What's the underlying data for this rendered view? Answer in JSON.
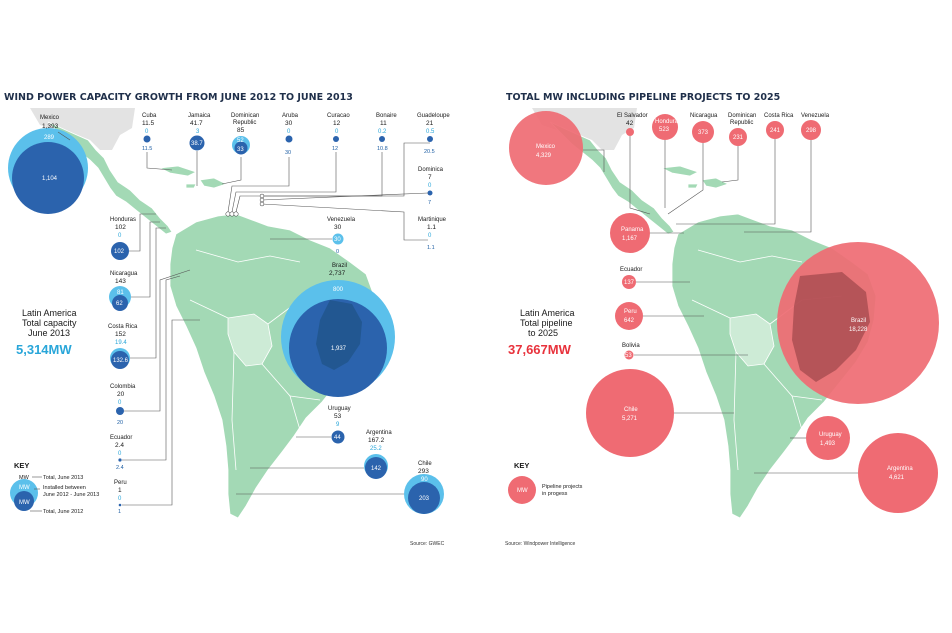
{
  "left": {
    "title": "WIND POWER CAPACITY GROWTH FROM JUNE 2012 TO JUNE 2013",
    "summary": {
      "line1": "Latin America",
      "line2": "Total capacity",
      "line3": "June 2013",
      "value": "5,314MW"
    },
    "source": "Source: GWEC",
    "key": {
      "heading": "KEY",
      "label_mw": "MW",
      "row1": "Total, June 2013",
      "row2a": "Installed between",
      "row2b": "June 2012 - June 2013",
      "row3": "Total, June 2012"
    },
    "countries": [
      {
        "id": "mexico",
        "name": "Mexico",
        "total": "1,393",
        "installed": "289",
        "prev": "1,104"
      },
      {
        "id": "cuba",
        "name": "Cuba",
        "total": "11.5",
        "installed": "0",
        "prev": "11.5"
      },
      {
        "id": "jamaica",
        "name": "Jamaica",
        "total": "41.7",
        "installed": "3",
        "prev": "38.7"
      },
      {
        "id": "dominican",
        "name_a": "Dominican",
        "name_b": "Republic",
        "total": "85",
        "installed": "52",
        "prev": "33"
      },
      {
        "id": "aruba",
        "name": "Aruba",
        "total": "30",
        "installed": "0",
        "prev": "30"
      },
      {
        "id": "curacao",
        "name": "Curacao",
        "total": "12",
        "installed": "0",
        "prev": "12"
      },
      {
        "id": "bonaire",
        "name": "Bonaire",
        "total": "11",
        "installed": "0.2",
        "prev": "10.8"
      },
      {
        "id": "guadeloupe",
        "name": "Guadeloupe",
        "total": "21",
        "installed": "0.5",
        "prev": "20.5"
      },
      {
        "id": "dominica",
        "name": "Dominica",
        "total": "7",
        "installed": "0",
        "prev": "7"
      },
      {
        "id": "martinique",
        "name": "Martinique",
        "total": "1.1",
        "installed": "0",
        "prev": "1.1"
      },
      {
        "id": "honduras",
        "name": "Honduras",
        "total": "102",
        "installed": "0",
        "prev": "102"
      },
      {
        "id": "nicaragua",
        "name": "Nicaragua",
        "total": "143",
        "installed": "81",
        "prev": "62"
      },
      {
        "id": "costarica",
        "name": "Costa Rica",
        "total": "152",
        "installed": "19.4",
        "prev": "132.6"
      },
      {
        "id": "colombia",
        "name": "Colombia",
        "total": "20",
        "installed": "0",
        "prev": "20"
      },
      {
        "id": "ecuador",
        "name": "Ecuador",
        "total": "2.4",
        "installed": "0",
        "prev": "2.4"
      },
      {
        "id": "peru",
        "name": "Peru",
        "total": "1",
        "installed": "0",
        "prev": "1"
      },
      {
        "id": "venezuela",
        "name": "Venezuela",
        "total": "30",
        "installed": "30",
        "prev": "0"
      },
      {
        "id": "brazil",
        "name": "Brazil",
        "total": "2,737",
        "installed": "800",
        "prev": "1,937"
      },
      {
        "id": "uruguay",
        "name": "Uruguay",
        "total": "53",
        "installed": "9",
        "prev": "44"
      },
      {
        "id": "argentina",
        "name": "Argentina",
        "total": "167.2",
        "installed": "25.2",
        "prev": "142"
      },
      {
        "id": "chile",
        "name": "Chile",
        "total": "293",
        "installed": "90",
        "prev": "203"
      }
    ]
  },
  "right": {
    "title": "TOTAL MW INCLUDING PIPELINE PROJECTS TO 2025",
    "summary": {
      "line1": "Latin America",
      "line2": "Total pipeline",
      "line3": "to 2025",
      "value": "37,667MW"
    },
    "source": "Source: Windpower Intelligence",
    "key": {
      "heading": "KEY",
      "label_mw": "MW",
      "row1a": "Pipeline projects",
      "row1b": "in progess"
    },
    "countries": [
      {
        "id": "mexico",
        "name": "Mexico",
        "value": "4,329"
      },
      {
        "id": "elsalvador",
        "name": "El Salvador",
        "value": "42"
      },
      {
        "id": "honduras",
        "name": "Honduras",
        "value": "523"
      },
      {
        "id": "nicaragua",
        "name": "Nicaragua",
        "value": "373"
      },
      {
        "id": "dominican",
        "name_a": "Dominican",
        "name_b": "Republic",
        "value": "231"
      },
      {
        "id": "costarica",
        "name": "Costa Rica",
        "value": "241"
      },
      {
        "id": "venezuela",
        "name": "Venezuela",
        "value": "298"
      },
      {
        "id": "panama",
        "name": "Panama",
        "value": "1,167"
      },
      {
        "id": "ecuador",
        "name": "Ecuador",
        "value": "137"
      },
      {
        "id": "peru",
        "name": "Peru",
        "value": "642"
      },
      {
        "id": "bolivia",
        "name": "Bolivia",
        "value": "53"
      },
      {
        "id": "brazil",
        "name": "Brazil",
        "value": "18,228"
      },
      {
        "id": "chile",
        "name": "Chile",
        "value": "5,271"
      },
      {
        "id": "uruguay",
        "name": "Uruguay",
        "value": "1,493"
      },
      {
        "id": "argentina",
        "name": "Argentina",
        "value": "4,621"
      }
    ]
  },
  "colors": {
    "land": "#a3d9b5",
    "land_light": "#cdebd6",
    "north_america": "#e3e3e3",
    "total_2013": "#5bc0eb",
    "total_2012": "#2b63ad",
    "installed_text": "#29a6d9",
    "pipeline": "#ef6b73",
    "summary_left": "#29a6d9",
    "summary_right": "#e8323c",
    "title": "#1f2f4a"
  }
}
